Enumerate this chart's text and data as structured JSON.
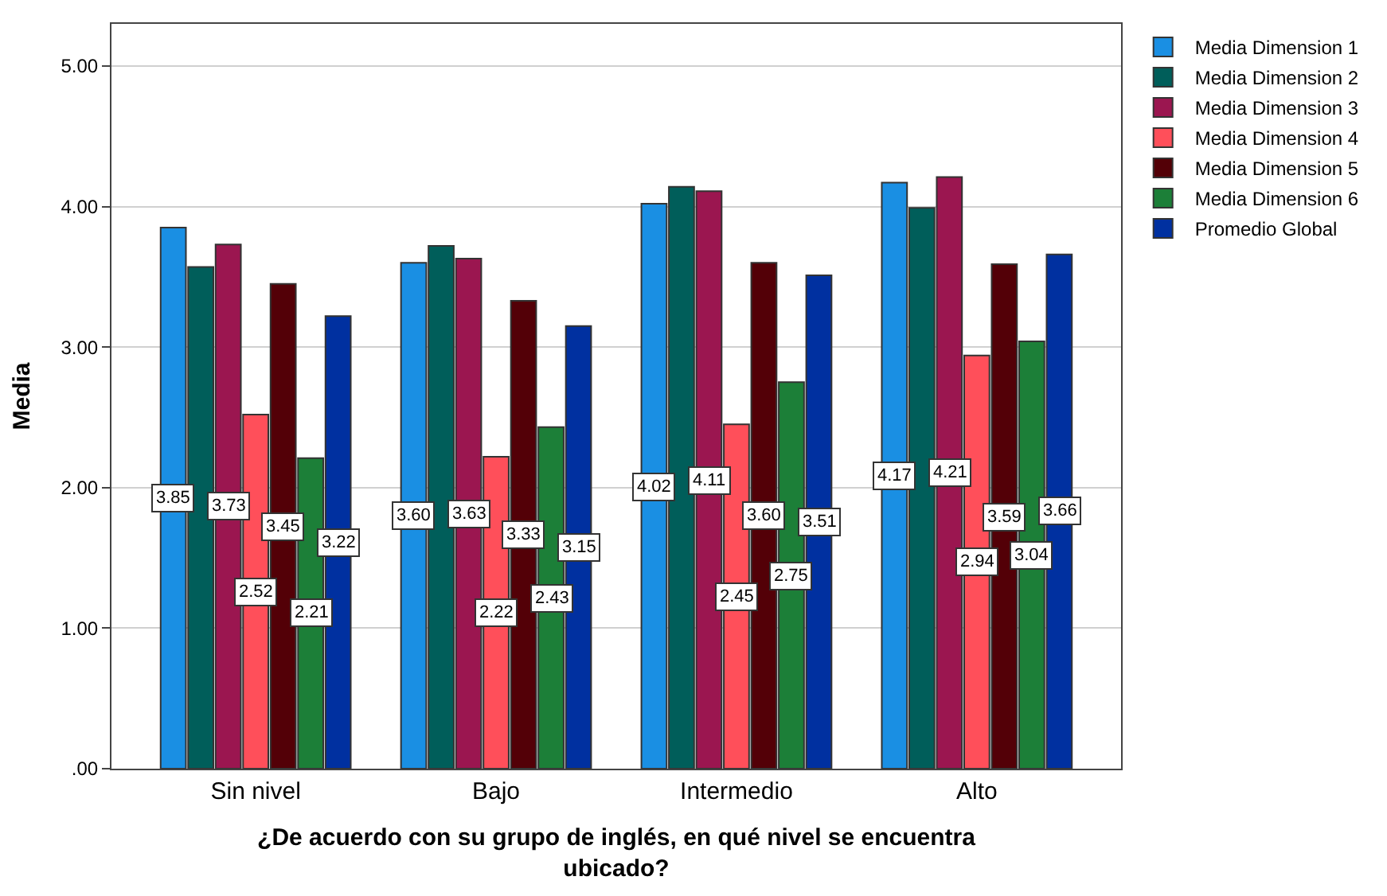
{
  "chart_data": {
    "type": "bar",
    "xlabel": "¿De acuerdo con su grupo de inglés, en qué nivel se encuentra ubicado?",
    "ylabel": "Media",
    "categories": [
      "Sin nivel",
      "Bajo",
      "Intermedio",
      "Alto"
    ],
    "series": [
      {
        "name": "Media Dimension 1",
        "color": "#1a8fe3",
        "values": [
          3.85,
          3.6,
          4.02,
          4.17
        ],
        "value_labels": [
          "3.85",
          "3.60",
          "4.02",
          "4.17"
        ]
      },
      {
        "name": "Media Dimension 2",
        "color": "#005e5a",
        "values": [
          3.57,
          3.72,
          4.14,
          3.99
        ]
      },
      {
        "name": "Media Dimension 3",
        "color": "#9b1650",
        "values": [
          3.73,
          3.63,
          4.11,
          4.21
        ],
        "value_labels": [
          "3.73",
          "3.63",
          "4.11",
          "4.21"
        ]
      },
      {
        "name": "Media Dimension 4",
        "color": "#ff4f5a",
        "values": [
          2.52,
          2.22,
          2.45,
          2.94
        ],
        "value_labels": [
          "2.52",
          "2.22",
          "2.45",
          "2.94"
        ]
      },
      {
        "name": "Media Dimension 5",
        "color": "#530007",
        "values": [
          3.45,
          3.33,
          3.6,
          3.59
        ],
        "value_labels": [
          "3.45",
          "3.33",
          "3.60",
          "3.59"
        ]
      },
      {
        "name": "Media Dimension 6",
        "color": "#1c7f38",
        "values": [
          2.21,
          2.43,
          2.75,
          3.04
        ],
        "value_labels": [
          "2.21",
          "2.43",
          "2.75",
          "3.04"
        ]
      },
      {
        "name": "Promedio Global",
        "color": "#0030a0",
        "values": [
          3.22,
          3.15,
          3.51,
          3.66
        ],
        "value_labels": [
          "3.22",
          "3.15",
          "3.51",
          "3.66"
        ]
      }
    ],
    "ylim": [
      0,
      5.3
    ],
    "yticks": [
      {
        "value": 0,
        "label": ".00"
      },
      {
        "value": 1,
        "label": "1.00"
      },
      {
        "value": 2,
        "label": "2.00"
      },
      {
        "value": 3,
        "label": "3.00"
      },
      {
        "value": 4,
        "label": "4.00"
      },
      {
        "value": 5,
        "label": "5.00"
      }
    ],
    "grid": "y",
    "legend": "top right"
  }
}
